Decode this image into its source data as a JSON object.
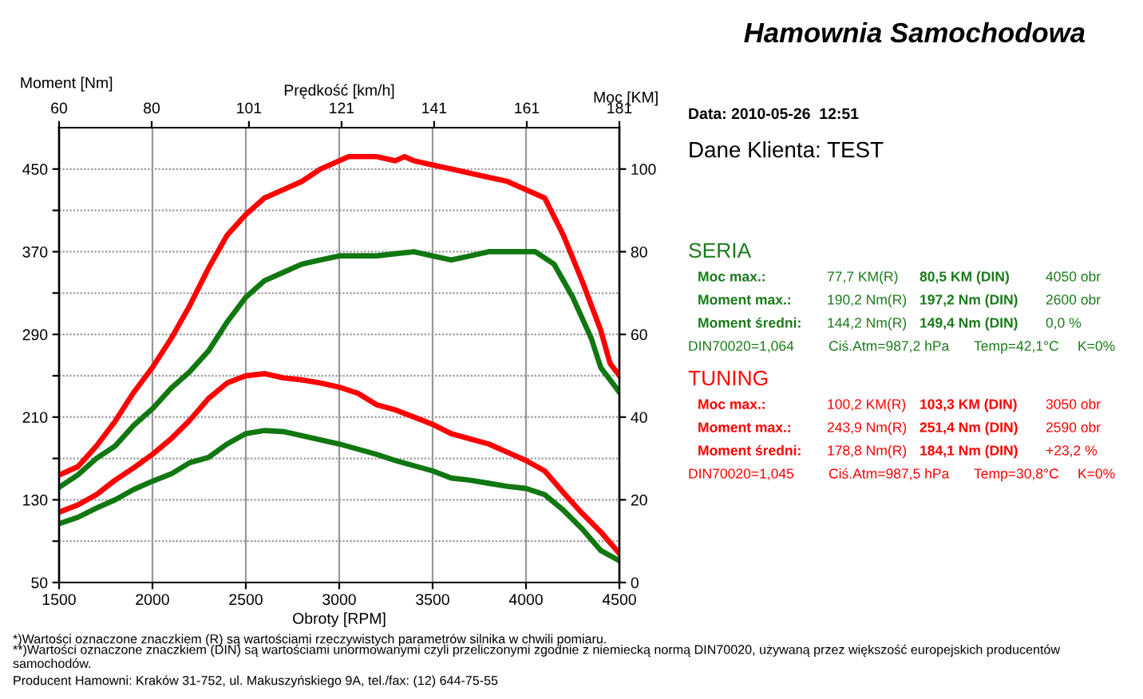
{
  "chart_data": [
    {
      "type": "line",
      "xlabel": "Obroty [RPM]",
      "ylabel": "Moment [Nm]",
      "y2label": "Moc [KM]",
      "x2label": "Prędkość [km/h]",
      "xlim": [
        1500,
        4500
      ],
      "xticks": [
        1500,
        2000,
        2500,
        3000,
        3500,
        4000,
        4500
      ],
      "ylim": [
        50,
        490
      ],
      "yticks": [
        50,
        {
          "value": 90,
          "label": null
        },
        130,
        {
          "value": 170,
          "label": null
        },
        210,
        {
          "value": 250,
          "label": null
        },
        290,
        {
          "value": 330,
          "label": null
        },
        370,
        {
          "value": 410,
          "label": null
        },
        450
      ],
      "y2lim": [
        0,
        110
      ],
      "y2ticks": [
        0,
        20,
        40,
        60,
        80,
        100
      ],
      "x2lim": [
        60,
        181
      ],
      "x2ticks": [
        60,
        80,
        101,
        121,
        141,
        161,
        181
      ],
      "grid": true,
      "marker": "none",
      "line_style": "solid",
      "series": [
        {
          "color": "#ff0000",
          "axis": "y2",
          "x": [
            1500,
            1600,
            1700,
            1800,
            1900,
            2000,
            2100,
            2200,
            2300,
            2400,
            2500,
            2600,
            2700,
            2800,
            2900,
            3000,
            3050,
            3200,
            3300,
            3350,
            3400,
            3500,
            3600,
            3700,
            3800,
            3900,
            4000,
            4100,
            4200,
            4300,
            4400,
            4450,
            4500
          ],
          "values": [
            26,
            28,
            33,
            39,
            46,
            52,
            59,
            67,
            76,
            84,
            89,
            93,
            95,
            97,
            100,
            102,
            103,
            103,
            102,
            103,
            102,
            101,
            100,
            99,
            98,
            97,
            95,
            93,
            84,
            73,
            61,
            53,
            50
          ]
        },
        {
          "color": "#117711",
          "axis": "y2",
          "x": [
            1500,
            1600,
            1700,
            1800,
            1900,
            2000,
            2100,
            2200,
            2300,
            2400,
            2500,
            2600,
            2700,
            2800,
            2900,
            3000,
            3200,
            3400,
            3500,
            3600,
            3700,
            3800,
            3950,
            4050,
            4150,
            4250,
            4350,
            4400,
            4450,
            4500
          ],
          "values": [
            23,
            26,
            30,
            33,
            38,
            42,
            47,
            51,
            56,
            63,
            69,
            73,
            75,
            77,
            78,
            79,
            79,
            80,
            79,
            78,
            79,
            80,
            80,
            80,
            77,
            69,
            59,
            52,
            49,
            46
          ]
        },
        {
          "color": "#ff0000",
          "axis": "y",
          "x": [
            1500,
            1600,
            1700,
            1800,
            1900,
            2000,
            2100,
            2200,
            2300,
            2400,
            2500,
            2600,
            2700,
            2800,
            2900,
            3000,
            3100,
            3200,
            3300,
            3400,
            3500,
            3600,
            3700,
            3800,
            3900,
            4000,
            4100,
            4200,
            4300,
            4400,
            4500
          ],
          "values": [
            118,
            125,
            135,
            149,
            161,
            174,
            189,
            207,
            228,
            243,
            250,
            252,
            248,
            246,
            243,
            239,
            233,
            222,
            217,
            210,
            203,
            194,
            189,
            184,
            176,
            168,
            158,
            137,
            117,
            99,
            78
          ]
        },
        {
          "color": "#117711",
          "axis": "y",
          "x": [
            1500,
            1600,
            1700,
            1800,
            1900,
            2000,
            2100,
            2200,
            2300,
            2400,
            2500,
            2600,
            2700,
            2800,
            2900,
            3000,
            3100,
            3200,
            3300,
            3400,
            3500,
            3600,
            3700,
            3800,
            3900,
            4000,
            4100,
            4200,
            4300,
            4400,
            4500
          ],
          "values": [
            107,
            113,
            122,
            130,
            140,
            148,
            155,
            166,
            171,
            184,
            194,
            197,
            196,
            192,
            188,
            184,
            179,
            174,
            168,
            163,
            158,
            151,
            149,
            146,
            143,
            141,
            135,
            120,
            102,
            81,
            71
          ]
        }
      ],
      "annotations": [
        "*)Wartości oznaczone znaczkiem (R) są wartościami rzeczywistych parametrów silnika w chwili pomiaru.",
        "**)Wartości oznaczone znaczkiem (DIN) są wartościami unormowanymi czyli przeliczonymi zgodnie z niemiecką normą DIN70020, używaną przez większość europejskich producentów samochodów.",
        "Producent Hamowni: Kraków 31-752, ul. Makuszyńskiego 9A, tel./fax: (12) 644-75-55"
      ]
    },
    {
      "type": "other",
      "title": "Hamownia Samochodowa",
      "annotations": [
        "Data: 2010-05-26  12:51",
        "Dane Klienta: TEST",
        "SERIA",
        "Moc max.:",
        "77,7 KM(R)",
        "80,5 KM (DIN)",
        "4050 obr",
        "Moment max.:",
        "190,2 Nm(R)",
        "197,2 Nm (DIN)",
        "2600 obr",
        "Moment średni:",
        "144,2 Nm(R)",
        "149,4 Nm (DIN)",
        "0,0 %",
        "DIN70020=1,064",
        "Ciś.Atm=987,2 hPa",
        "Temp=42,1°C",
        "K=0%",
        "TUNING",
        "Moc max.:",
        "100,2 KM(R)",
        "103,3 KM (DIN)",
        "3050 obr",
        "Moment max.:",
        "243,9 Nm(R)",
        "251,4 Nm (DIN)",
        "2590 obr",
        "Moment średni:",
        "178,8 Nm(R)",
        "184,1 Nm (DIN)",
        "+23,2 %",
        "DIN70020=1,045",
        "Ciś.Atm=987,5 hPa",
        "Temp=30,8°C",
        "K=0%"
      ],
      "colors": [
        "#000000",
        "#000000",
        "#1a7a1a",
        "#1a7a1a",
        "#1a7a1a",
        "#1a7a1a",
        "#1a7a1a",
        "#1a7a1a",
        "#1a7a1a",
        "#1a7a1a",
        "#1a7a1a",
        "#1a7a1a",
        "#1a7a1a",
        "#1a7a1a",
        "#1a7a1a",
        "#1a7a1a",
        "#1a7a1a",
        "#1a7a1a",
        "#1a7a1a",
        "#ff0000",
        "#ff0000",
        "#ff0000",
        "#ff0000",
        "#ff0000",
        "#ff0000",
        "#ff0000",
        "#ff0000",
        "#ff0000",
        "#ff0000",
        "#ff0000",
        "#ff0000",
        "#ff0000",
        "#ff0000",
        "#ff0000",
        "#ff0000",
        "#ff0000"
      ]
    }
  ]
}
